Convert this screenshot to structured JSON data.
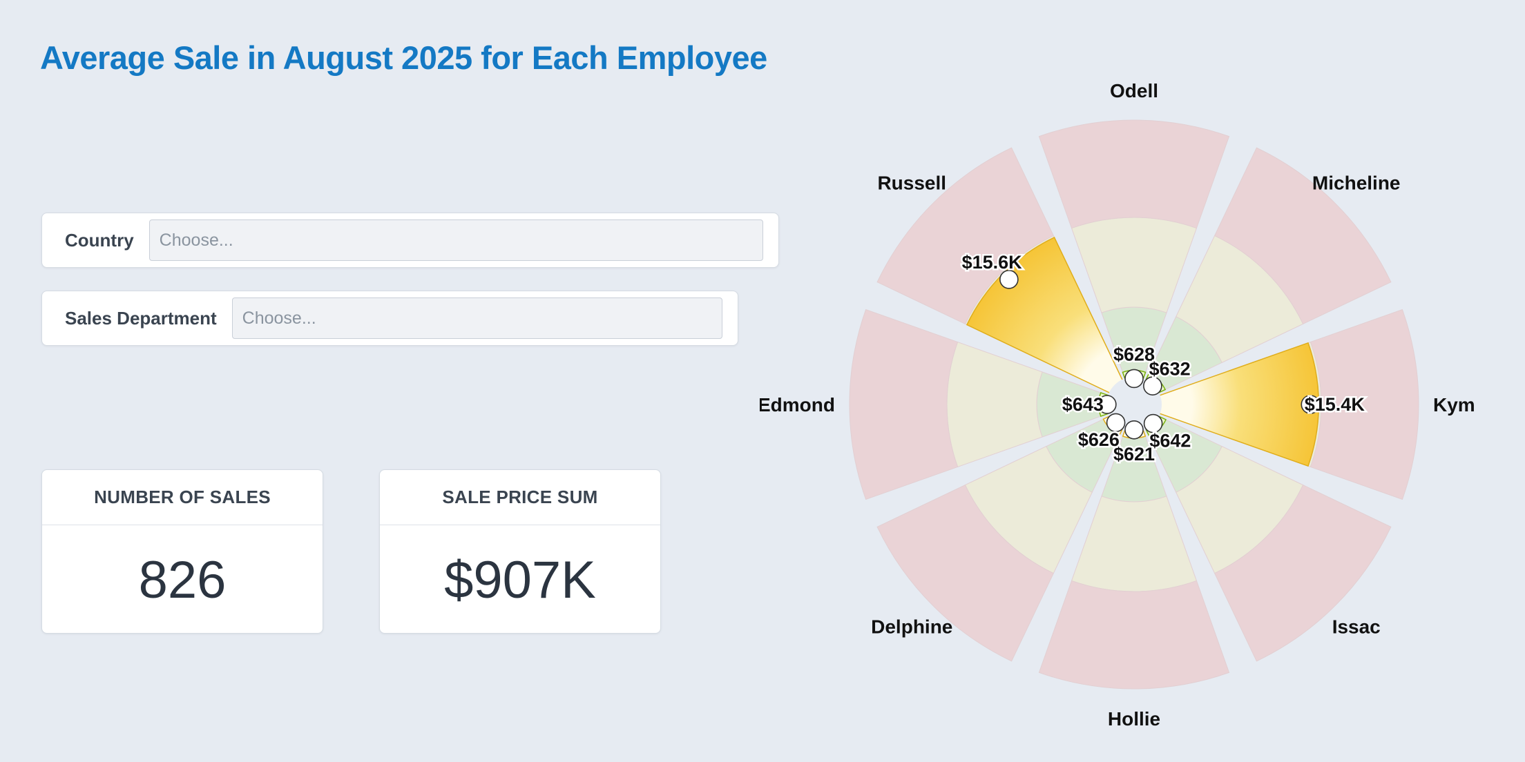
{
  "title": "Average Sale in August 2025 for Each Employee",
  "filters": {
    "country": {
      "label": "Country",
      "placeholder": "Choose..."
    },
    "department": {
      "label": "Sales Department",
      "placeholder": "Choose..."
    }
  },
  "kpis": {
    "sales_count": {
      "label": "NUMBER OF SALES",
      "value": "826"
    },
    "price_sum": {
      "label": "SALE PRICE SUM",
      "value": "$907K"
    }
  },
  "colors": {
    "title": "#1479c4",
    "band_low": "#d9e8d3",
    "band_mid": "#ecebd9",
    "band_high": "#ead3d6",
    "bar_green": "#8ec814",
    "bar_yellow": "#f5c230"
  },
  "chart_data": {
    "type": "radial-gauge",
    "series": "Average Sale",
    "scale": "log",
    "bands": [
      "low",
      "mid",
      "high"
    ],
    "categories": [
      "Odell",
      "Micheline",
      "Kym",
      "Issac",
      "Hollie",
      "Delphine",
      "Edmond",
      "Russell"
    ],
    "values": [
      628,
      632,
      15400,
      642,
      621,
      626,
      643,
      15600
    ],
    "labels": [
      "$628",
      "$632",
      "$15.4K",
      "$642",
      "$621",
      "$626",
      "$643",
      "$15.6K"
    ],
    "bar_colors": [
      "green",
      "green",
      "yellow",
      "green",
      "yellow",
      "yellow",
      "green",
      "yellow"
    ]
  }
}
